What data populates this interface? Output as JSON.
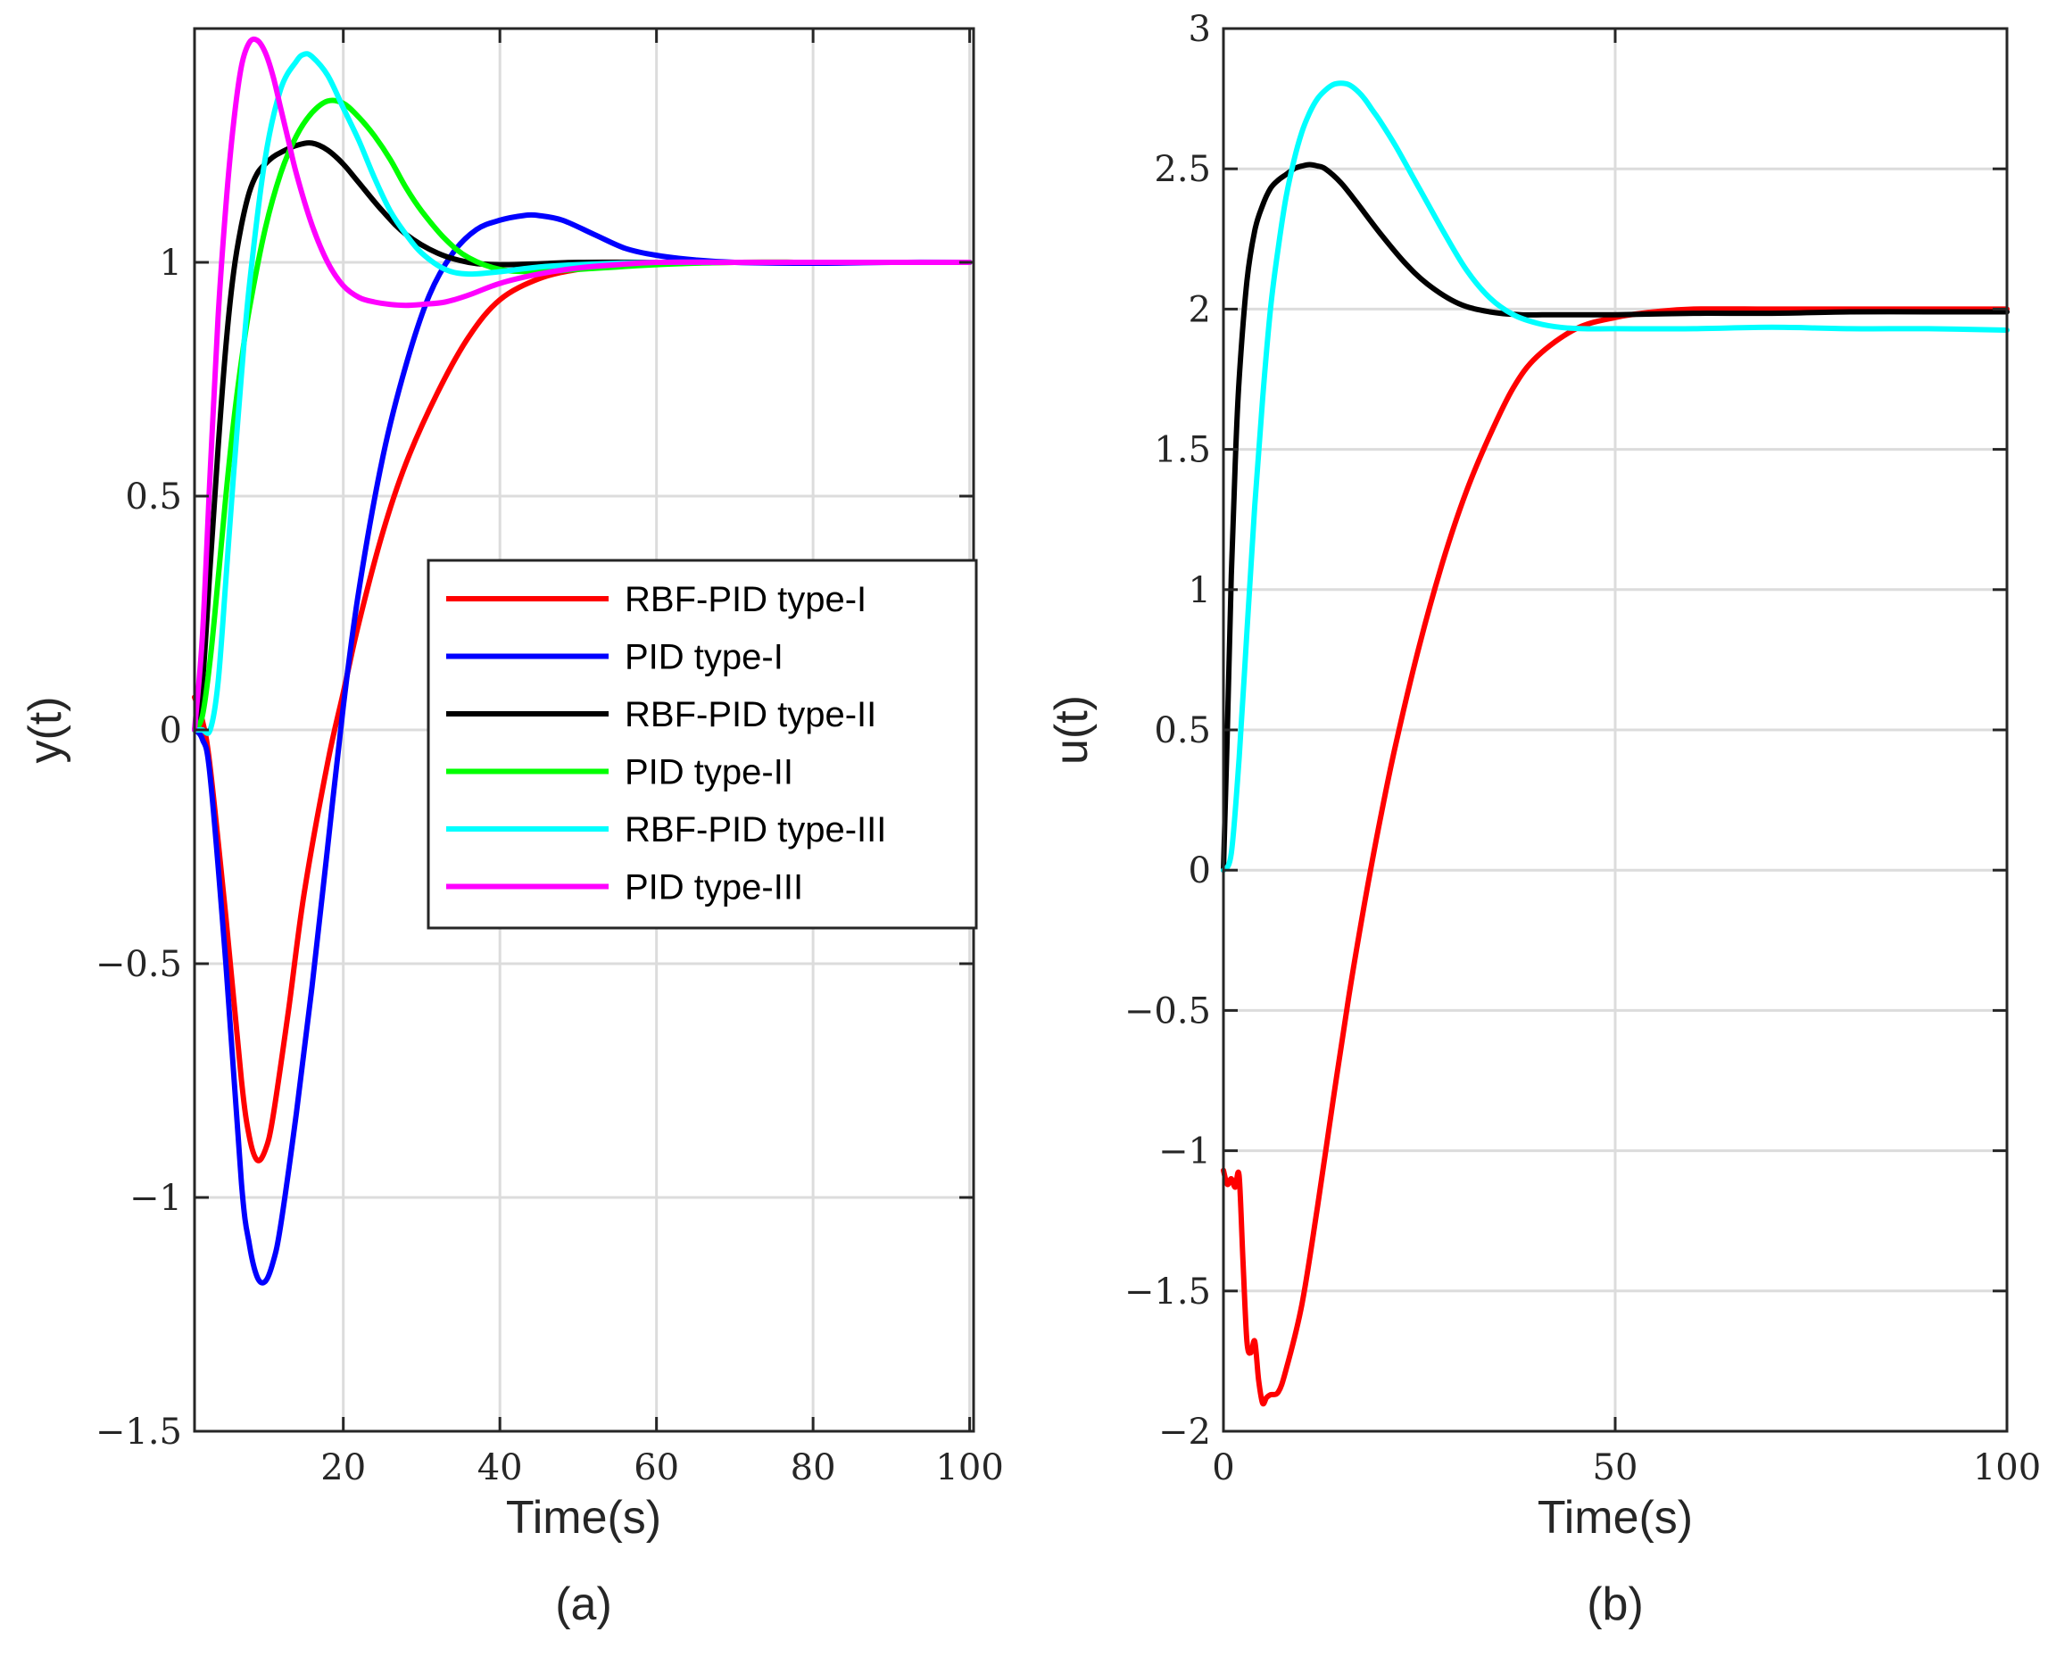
{
  "chart_data": [
    {
      "type": "line",
      "panel": "a",
      "caption": "(a)",
      "xlabel": "Time(s)",
      "ylabel": "y(t)",
      "xlim": [
        1,
        100.5
      ],
      "ylim": [
        -1.5,
        1.5
      ],
      "xticks": [
        20,
        40,
        60,
        80,
        100
      ],
      "xtick_labels": [
        "20",
        "40",
        "60",
        "80",
        "100"
      ],
      "yticks": [
        -1.5,
        -1,
        -0.5,
        0,
        0.5,
        1
      ],
      "ytick_labels": [
        "−1.5",
        "−1",
        "−0.5",
        "0",
        "0.5",
        "1"
      ],
      "grid": true,
      "legend_position": "center-right",
      "series": [
        {
          "name": "RBF-PID type-I",
          "color": "#ff0000",
          "x": [
            1,
            2,
            3,
            5,
            7,
            8,
            9,
            10,
            11,
            13,
            15,
            18,
            20,
            22,
            25,
            28,
            32,
            36,
            40,
            45,
            50,
            55,
            60,
            70,
            80,
            90,
            100
          ],
          "y": [
            0.07,
            0.02,
            -0.08,
            -0.4,
            -0.75,
            -0.87,
            -0.92,
            -0.9,
            -0.83,
            -0.6,
            -0.35,
            -0.07,
            0.08,
            0.23,
            0.42,
            0.57,
            0.72,
            0.84,
            0.92,
            0.965,
            0.985,
            0.993,
            0.997,
            1.0,
            1.0,
            1.0,
            1.0
          ]
        },
        {
          "name": "PID type-I",
          "color": "#0000ff",
          "x": [
            1,
            2,
            3,
            5,
            7,
            8,
            9,
            10,
            11,
            12,
            14,
            16,
            18,
            20,
            22,
            25,
            28,
            31,
            34,
            37,
            40,
            43,
            45,
            48,
            52,
            56,
            60,
            65,
            70,
            80,
            90,
            100
          ],
          "y": [
            0.0,
            -0.02,
            -0.1,
            -0.5,
            -0.97,
            -1.1,
            -1.17,
            -1.18,
            -1.14,
            -1.06,
            -0.82,
            -0.55,
            -0.25,
            0.05,
            0.3,
            0.58,
            0.78,
            0.93,
            1.02,
            1.07,
            1.09,
            1.1,
            1.1,
            1.09,
            1.06,
            1.03,
            1.015,
            1.005,
            1.0,
            0.998,
            1.0,
            1.0
          ]
        },
        {
          "name": "RBF-PID type-II",
          "color": "#000000",
          "x": [
            1,
            2,
            3,
            4,
            5,
            6,
            7,
            8,
            9,
            10,
            11,
            12,
            14,
            16,
            18,
            20,
            22,
            25,
            28,
            32,
            36,
            40,
            45,
            50,
            60,
            70,
            80,
            90,
            100
          ],
          "y": [
            0.0,
            0.1,
            0.35,
            0.6,
            0.82,
            0.98,
            1.08,
            1.15,
            1.19,
            1.21,
            1.225,
            1.235,
            1.25,
            1.255,
            1.24,
            1.21,
            1.17,
            1.11,
            1.06,
            1.02,
            1.0,
            0.995,
            0.997,
            1.0,
            1.0,
            1.0,
            1.0,
            1.0,
            1.0
          ]
        },
        {
          "name": "PID type-II",
          "color": "#00ff00",
          "x": [
            1,
            2,
            3,
            4,
            5,
            6,
            7,
            8,
            10,
            12,
            14,
            16,
            18,
            20,
            22,
            24,
            26,
            28,
            30,
            33,
            36,
            40,
            45,
            50,
            55,
            60,
            70,
            80,
            90,
            100
          ],
          "y": [
            0.0,
            0.03,
            0.15,
            0.32,
            0.5,
            0.66,
            0.79,
            0.9,
            1.07,
            1.19,
            1.27,
            1.32,
            1.345,
            1.34,
            1.31,
            1.27,
            1.22,
            1.16,
            1.11,
            1.05,
            1.01,
            0.985,
            0.98,
            0.985,
            0.99,
            0.995,
            1.0,
            1.0,
            1.0,
            1.0
          ]
        },
        {
          "name": "RBF-PID type-III",
          "color": "#00ffff",
          "x": [
            1,
            2,
            3,
            4,
            5,
            6,
            7,
            8,
            10,
            12,
            14,
            15,
            16,
            18,
            20,
            22,
            24,
            26,
            28,
            30,
            33,
            36,
            40,
            45,
            50,
            60,
            70,
            80,
            90,
            100
          ],
          "y": [
            0.0,
            0.0,
            0.0,
            0.1,
            0.32,
            0.55,
            0.76,
            0.95,
            1.22,
            1.37,
            1.43,
            1.445,
            1.44,
            1.4,
            1.33,
            1.26,
            1.18,
            1.11,
            1.06,
            1.02,
            0.985,
            0.975,
            0.98,
            0.99,
            0.995,
            1.0,
            1.0,
            1.0,
            1.0,
            1.0
          ]
        },
        {
          "name": "PID type-III",
          "color": "#ff00ff",
          "x": [
            1,
            2,
            3,
            4,
            5,
            6,
            7,
            8,
            9,
            10,
            11,
            12,
            13,
            14,
            16,
            18,
            20,
            22,
            24,
            26,
            28,
            30,
            33,
            36,
            40,
            45,
            50,
            55,
            60,
            70,
            80,
            90,
            100
          ],
          "y": [
            0.0,
            0.2,
            0.55,
            0.88,
            1.12,
            1.3,
            1.42,
            1.47,
            1.475,
            1.45,
            1.4,
            1.33,
            1.26,
            1.19,
            1.08,
            1.0,
            0.95,
            0.925,
            0.915,
            0.91,
            0.908,
            0.91,
            0.915,
            0.93,
            0.955,
            0.975,
            0.988,
            0.995,
            1.0,
            1.0,
            1.0,
            1.0,
            1.0
          ]
        }
      ]
    },
    {
      "type": "line",
      "panel": "b",
      "caption": "(b)",
      "xlabel": "Time(s)",
      "ylabel": "u(t)",
      "xlim": [
        0,
        100
      ],
      "ylim": [
        -2,
        3
      ],
      "xticks": [
        0,
        50,
        100
      ],
      "xtick_labels": [
        "0",
        "50",
        "100"
      ],
      "yticks": [
        -2,
        -1.5,
        -1,
        -0.5,
        0,
        0.5,
        1,
        1.5,
        2,
        2.5,
        3
      ],
      "ytick_labels": [
        "−2",
        "−1.5",
        "−1",
        "−0.5",
        "0",
        "0.5",
        "1",
        "1.5",
        "2",
        "2.5",
        "3"
      ],
      "grid": true,
      "series": [
        {
          "name": "RBF-PID type-I",
          "color": "#ff0000",
          "x": [
            0,
            0.5,
            1,
            1.5,
            2,
            2.5,
            3,
            3.5,
            4,
            4.5,
            5,
            5.5,
            6,
            7,
            8,
            10,
            12,
            14,
            16,
            18,
            20,
            22,
            25,
            28,
            31,
            34,
            37,
            40,
            45,
            50,
            55,
            60,
            70,
            80,
            90,
            100
          ],
          "y": [
            -1.07,
            -1.12,
            -1.1,
            -1.13,
            -1.09,
            -1.4,
            -1.68,
            -1.72,
            -1.68,
            -1.82,
            -1.9,
            -1.88,
            -1.87,
            -1.86,
            -1.78,
            -1.55,
            -1.2,
            -0.82,
            -0.45,
            -0.12,
            0.18,
            0.45,
            0.8,
            1.1,
            1.35,
            1.55,
            1.72,
            1.83,
            1.93,
            1.97,
            1.99,
            2.0,
            2.0,
            2.0,
            2.0,
            2.0
          ]
        },
        {
          "name": "RBF-PID type-II",
          "color": "#000000",
          "x": [
            0,
            0.5,
            1,
            1.5,
            2,
            3,
            4,
            5,
            6,
            7,
            8,
            9,
            10,
            11,
            12,
            13,
            15,
            17,
            20,
            23,
            26,
            30,
            34,
            38,
            42,
            46,
            50,
            60,
            70,
            80,
            90,
            100
          ],
          "y": [
            0.0,
            0.5,
            1.05,
            1.45,
            1.75,
            2.1,
            2.28,
            2.37,
            2.43,
            2.46,
            2.48,
            2.5,
            2.51,
            2.515,
            2.51,
            2.5,
            2.45,
            2.38,
            2.27,
            2.17,
            2.09,
            2.02,
            1.99,
            1.98,
            1.98,
            1.98,
            1.98,
            1.985,
            1.985,
            1.99,
            1.99,
            1.99
          ]
        },
        {
          "name": "RBF-PID type-III",
          "color": "#00ffff",
          "x": [
            0,
            1,
            2,
            3,
            4,
            5,
            6,
            7,
            8,
            9,
            10,
            11,
            12,
            13,
            14,
            15,
            16,
            17,
            18,
            19,
            20,
            22,
            25,
            28,
            31,
            34,
            37,
            40,
            43,
            46,
            50,
            60,
            70,
            80,
            90,
            100
          ],
          "y": [
            0.0,
            0.06,
            0.4,
            0.85,
            1.3,
            1.68,
            2.0,
            2.22,
            2.4,
            2.53,
            2.63,
            2.7,
            2.75,
            2.78,
            2.8,
            2.805,
            2.8,
            2.78,
            2.75,
            2.71,
            2.67,
            2.58,
            2.43,
            2.28,
            2.14,
            2.04,
            1.98,
            1.95,
            1.935,
            1.93,
            1.93,
            1.93,
            1.935,
            1.93,
            1.93,
            1.925
          ]
        }
      ]
    }
  ]
}
